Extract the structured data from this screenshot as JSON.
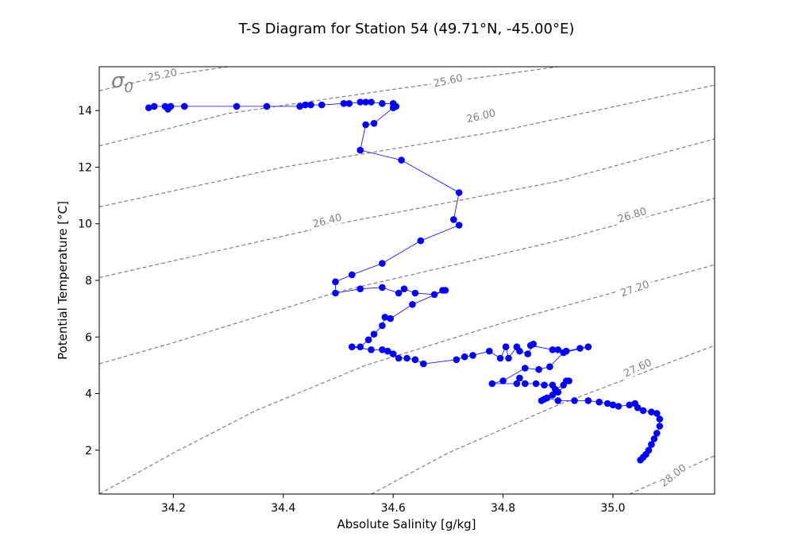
{
  "chart_data": {
    "type": "scatter",
    "title": "T-S Diagram for Station 54 (49.71°N, -45.00°E)",
    "xlabel": "Absolute Salinity [g/kg]",
    "ylabel": "Potential Temperature [°C]",
    "xlim": [
      34.065,
      35.185
    ],
    "ylim": [
      0.45,
      15.55
    ],
    "xticks": [
      {
        "value": 34.2,
        "label": "34.2"
      },
      {
        "value": 34.4,
        "label": "34.4"
      },
      {
        "value": 34.6,
        "label": "34.6"
      },
      {
        "value": 34.8,
        "label": "34.8"
      },
      {
        "value": 35.0,
        "label": "35.0"
      }
    ],
    "yticks": [
      {
        "value": 2,
        "label": "2"
      },
      {
        "value": 4,
        "label": "4"
      },
      {
        "value": 6,
        "label": "6"
      },
      {
        "value": 8,
        "label": "8"
      },
      {
        "value": 10,
        "label": "10"
      },
      {
        "value": 12,
        "label": "12"
      },
      {
        "value": 14,
        "label": "14"
      }
    ],
    "marker_color": "#0000ff",
    "line_color": "#0000ff",
    "isopycnal_color": "#808080",
    "isopycnal_symbol": "σ",
    "isopycnal_subscript": "0",
    "isopycnals": [
      {
        "label": "25.20",
        "points": [
          [
            34.065,
            14.7
          ],
          [
            34.175,
            15.2
          ],
          [
            34.3,
            15.55
          ]
        ],
        "label_at": [
          34.18,
          15.25
        ],
        "angle": -11
      },
      {
        "label": "25.60",
        "points": [
          [
            34.065,
            12.75
          ],
          [
            34.3,
            13.9
          ],
          [
            34.6,
            14.75
          ],
          [
            34.9,
            15.55
          ]
        ],
        "label_at": [
          34.7,
          15.05
        ],
        "angle": -12
      },
      {
        "label": "26.00",
        "points": [
          [
            34.065,
            10.6
          ],
          [
            34.4,
            12.0
          ],
          [
            34.8,
            13.3
          ],
          [
            35.185,
            14.9
          ]
        ],
        "label_at": [
          34.76,
          13.8
        ],
        "angle": -13
      },
      {
        "label": "26.40",
        "points": [
          [
            34.065,
            8.1
          ],
          [
            34.5,
            10.0
          ],
          [
            34.9,
            11.5
          ],
          [
            35.185,
            13.0
          ]
        ],
        "label_at": [
          34.48,
          10.1
        ],
        "angle": -14
      },
      {
        "label": "26.80",
        "points": [
          [
            34.065,
            5.05
          ],
          [
            34.2,
            5.8
          ],
          [
            34.5,
            7.6
          ],
          [
            34.9,
            9.4
          ],
          [
            35.185,
            10.9
          ]
        ],
        "label_at": [
          35.035,
          10.3
        ],
        "angle": -17
      },
      {
        "label": "27.20",
        "points": [
          [
            34.065,
            0.45
          ],
          [
            34.2,
            1.9
          ],
          [
            34.35,
            3.4
          ],
          [
            34.55,
            5.0
          ],
          [
            34.8,
            6.5
          ],
          [
            35.185,
            8.55
          ]
        ],
        "label_at": [
          35.04,
          7.7
        ],
        "angle": -19
      },
      {
        "label": "27.60",
        "points": [
          [
            34.56,
            0.45
          ],
          [
            34.7,
            1.9
          ],
          [
            34.9,
            3.6
          ],
          [
            35.185,
            5.7
          ]
        ],
        "label_at": [
          35.045,
          4.9
        ],
        "angle": -25
      },
      {
        "label": "28.00",
        "points": [
          [
            35.03,
            0.45
          ],
          [
            35.185,
            1.8
          ]
        ],
        "label_at": [
          35.11,
          1.1
        ],
        "angle": -38
      }
    ],
    "series": [
      {
        "points": [
          [
            34.155,
            14.1
          ],
          [
            34.165,
            14.15
          ],
          [
            34.185,
            14.15
          ],
          [
            34.19,
            14.05
          ],
          [
            34.195,
            14.15
          ],
          [
            34.22,
            14.15
          ],
          [
            34.315,
            14.15
          ],
          [
            34.37,
            14.15
          ],
          [
            34.43,
            14.15
          ],
          [
            34.44,
            14.2
          ],
          [
            34.45,
            14.2
          ],
          [
            34.47,
            14.2
          ],
          [
            34.51,
            14.25
          ],
          [
            34.52,
            14.25
          ],
          [
            34.54,
            14.3
          ],
          [
            34.55,
            14.3
          ],
          [
            34.56,
            14.3
          ],
          [
            34.58,
            14.25
          ],
          [
            34.6,
            14.25
          ],
          [
            34.605,
            14.15
          ],
          [
            34.6,
            14.1
          ],
          [
            34.565,
            13.55
          ],
          [
            34.55,
            13.5
          ],
          [
            34.54,
            12.6
          ],
          [
            34.615,
            12.25
          ],
          [
            34.72,
            11.1
          ],
          [
            34.71,
            10.15
          ],
          [
            34.72,
            9.95
          ],
          [
            34.65,
            9.4
          ],
          [
            34.58,
            8.6
          ],
          [
            34.525,
            8.2
          ],
          [
            34.495,
            7.95
          ],
          [
            34.495,
            7.55
          ],
          [
            34.54,
            7.7
          ],
          [
            34.58,
            7.75
          ],
          [
            34.61,
            7.55
          ],
          [
            34.62,
            7.7
          ],
          [
            34.64,
            7.55
          ],
          [
            34.675,
            7.5
          ],
          [
            34.69,
            7.65
          ],
          [
            34.695,
            7.65
          ],
          [
            34.635,
            7.15
          ],
          [
            34.595,
            6.65
          ],
          [
            34.585,
            6.7
          ],
          [
            34.58,
            6.4
          ],
          [
            34.565,
            6.1
          ],
          [
            34.555,
            5.9
          ],
          [
            34.54,
            5.65
          ],
          [
            34.525,
            5.65
          ],
          [
            34.56,
            5.55
          ],
          [
            34.58,
            5.55
          ],
          [
            34.59,
            5.5
          ],
          [
            34.6,
            5.4
          ],
          [
            34.61,
            5.25
          ],
          [
            34.625,
            5.25
          ],
          [
            34.64,
            5.2
          ],
          [
            34.655,
            5.05
          ],
          [
            34.715,
            5.2
          ],
          [
            34.73,
            5.3
          ],
          [
            34.745,
            5.35
          ],
          [
            34.775,
            5.5
          ],
          [
            34.795,
            5.25
          ],
          [
            34.805,
            5.65
          ],
          [
            34.81,
            5.25
          ],
          [
            34.825,
            5.65
          ],
          [
            34.83,
            5.5
          ],
          [
            34.845,
            5.4
          ],
          [
            34.855,
            5.75
          ],
          [
            34.85,
            5.7
          ],
          [
            34.89,
            5.55
          ],
          [
            34.9,
            5.55
          ],
          [
            34.915,
            5.5
          ],
          [
            34.94,
            5.6
          ],
          [
            34.955,
            5.65
          ],
          [
            34.91,
            5.45
          ],
          [
            34.885,
            4.95
          ],
          [
            34.865,
            4.85
          ],
          [
            34.84,
            4.9
          ],
          [
            34.8,
            4.45
          ],
          [
            34.78,
            4.35
          ],
          [
            34.825,
            4.35
          ],
          [
            34.83,
            4.55
          ],
          [
            34.84,
            4.35
          ],
          [
            34.86,
            4.35
          ],
          [
            34.875,
            4.3
          ],
          [
            34.89,
            4.3
          ],
          [
            34.895,
            4.15
          ],
          [
            34.91,
            4.3
          ],
          [
            34.915,
            4.45
          ],
          [
            34.92,
            4.45
          ],
          [
            34.9,
            4.05
          ],
          [
            34.89,
            3.95
          ],
          [
            34.875,
            3.8
          ],
          [
            34.87,
            3.75
          ],
          [
            34.88,
            3.85
          ],
          [
            34.9,
            3.75
          ],
          [
            34.93,
            3.75
          ],
          [
            34.955,
            3.75
          ],
          [
            34.975,
            3.7
          ],
          [
            34.99,
            3.65
          ],
          [
            35.0,
            3.6
          ],
          [
            35.01,
            3.55
          ],
          [
            35.03,
            3.6
          ],
          [
            35.04,
            3.65
          ],
          [
            35.045,
            3.5
          ],
          [
            35.055,
            3.4
          ],
          [
            35.07,
            3.35
          ],
          [
            35.08,
            3.3
          ],
          [
            35.085,
            3.1
          ],
          [
            35.085,
            2.85
          ],
          [
            35.08,
            2.6
          ],
          [
            35.075,
            2.4
          ],
          [
            35.07,
            2.2
          ],
          [
            35.065,
            2.0
          ],
          [
            35.06,
            1.85
          ],
          [
            35.055,
            1.75
          ],
          [
            35.05,
            1.65
          ]
        ]
      }
    ]
  }
}
